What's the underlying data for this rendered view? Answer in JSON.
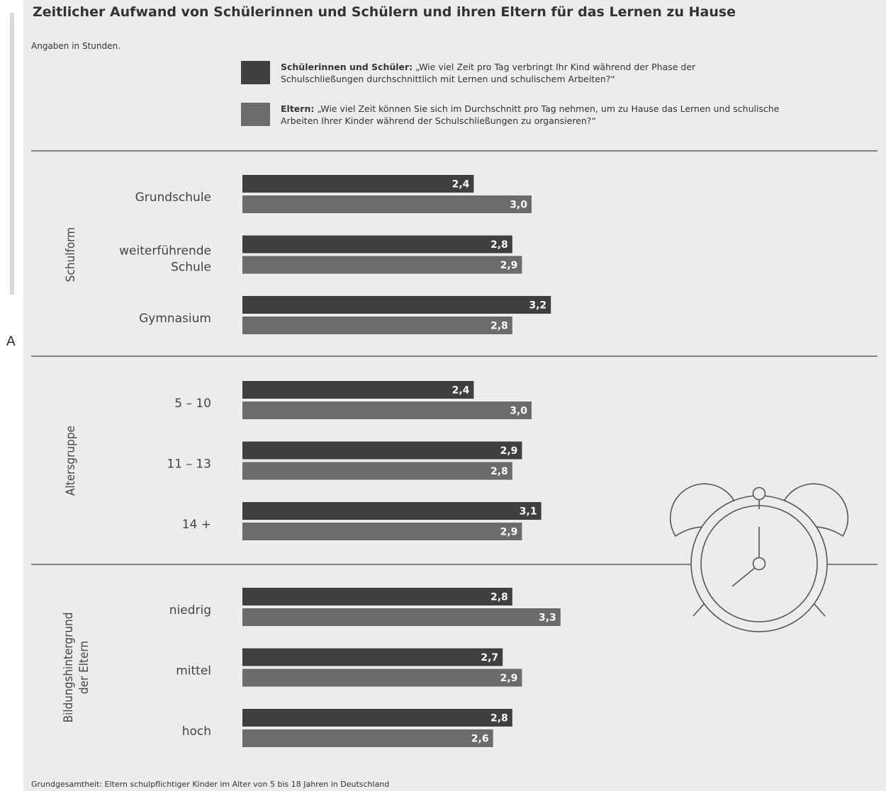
{
  "stray_letter": "A",
  "title": "Zeitlicher Aufwand von Schülerinnen und Schülern und ihren Eltern für das Lernen zu Hause",
  "subtitle": "Angaben in Stunden.",
  "legend": [
    {
      "bold": "Schülerinnen und Schüler:",
      "text": " „Wie viel Zeit pro Tag verbringt Ihr Kind während der Phase der Schulschließungen durchschnittlich mit Lernen und schulischem Arbeiten?“",
      "color": "#3f3f3f"
    },
    {
      "bold": "Eltern:",
      "text": " „Wie viel Zeit können Sie sich im Durchschnitt pro Tag nehmen, um zu Hause das Lernen und schulische Arbeiten Ihrer Kinder während der Schulschließungen zu organsieren?“",
      "color": "#6b6b6b"
    }
  ],
  "footnote": "Grundgesamtheit: Eltern schulpflichtiger Kinder im Alter von 5 bis 18 Jahren in Deutschland",
  "decoration_icon": "alarm-clock-icon",
  "chart_data": {
    "type": "bar",
    "orientation": "horizontal",
    "unit": "Stunden",
    "series": [
      {
        "name": "Schülerinnen und Schüler",
        "color": "#3f3f3f"
      },
      {
        "name": "Eltern",
        "color": "#6b6b6b"
      }
    ],
    "groups": [
      {
        "label": "Schulform",
        "categories": [
          {
            "label": "Grundschule",
            "values": [
              2.4,
              3.0
            ],
            "value_labels": [
              "2,4",
              "3,0"
            ]
          },
          {
            "label": "weiterführende Schule",
            "values": [
              2.8,
              2.9
            ],
            "value_labels": [
              "2,8",
              "2,9"
            ]
          },
          {
            "label": "Gymnasium",
            "values": [
              3.2,
              2.8
            ],
            "value_labels": [
              "3,2",
              "2,8"
            ]
          }
        ]
      },
      {
        "label": "Altersgruppe",
        "categories": [
          {
            "label": "5 – 10",
            "values": [
              2.4,
              3.0
            ],
            "value_labels": [
              "2,4",
              "3,0"
            ]
          },
          {
            "label": "11 – 13",
            "values": [
              2.9,
              2.8
            ],
            "value_labels": [
              "2,9",
              "2,8"
            ]
          },
          {
            "label": "14 +",
            "values": [
              3.1,
              2.9
            ],
            "value_labels": [
              "3,1",
              "2,9"
            ]
          }
        ]
      },
      {
        "label": "Bildungshintergrund der Eltern",
        "categories": [
          {
            "label": "niedrig",
            "values": [
              2.8,
              3.3
            ],
            "value_labels": [
              "2,8",
              "3,3"
            ]
          },
          {
            "label": "mittel",
            "values": [
              2.7,
              2.9
            ],
            "value_labels": [
              "2,7",
              "2,9"
            ]
          },
          {
            "label": "hoch",
            "values": [
              2.8,
              2.6
            ],
            "value_labels": [
              "2,8",
              "2,6"
            ]
          }
        ]
      }
    ]
  }
}
